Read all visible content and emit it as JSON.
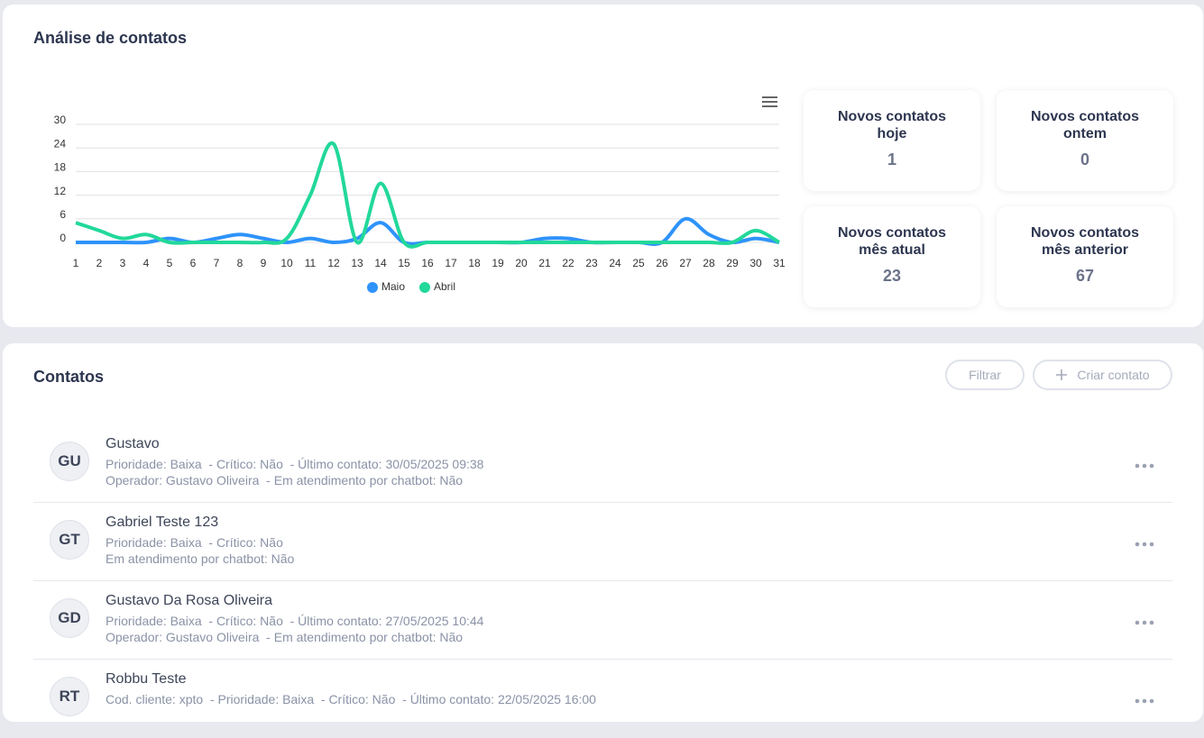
{
  "header": {
    "title": "Análise de contatos"
  },
  "chart_data": {
    "type": "line",
    "categories": [
      "1",
      "2",
      "3",
      "4",
      "5",
      "6",
      "7",
      "8",
      "9",
      "10",
      "11",
      "12",
      "13",
      "14",
      "15",
      "16",
      "17",
      "18",
      "19",
      "20",
      "21",
      "22",
      "23",
      "24",
      "25",
      "26",
      "27",
      "28",
      "29",
      "30",
      "31"
    ],
    "series": [
      {
        "name": "Maio",
        "color": "#2e93fa",
        "values": [
          0,
          0,
          0,
          0,
          1,
          0,
          1,
          2,
          1,
          0,
          1,
          0,
          1,
          5,
          0,
          0,
          0,
          0,
          0,
          0,
          1,
          1,
          0,
          0,
          0,
          0,
          6,
          2,
          0,
          1,
          0
        ]
      },
      {
        "name": "Abril",
        "color": "#22d89a",
        "values": [
          5,
          3,
          1,
          2,
          0,
          0,
          0,
          0,
          0,
          1,
          12,
          25,
          0,
          15,
          0,
          0,
          0,
          0,
          0,
          0,
          0,
          0,
          0,
          0,
          0,
          0,
          0,
          0,
          0,
          3,
          0
        ]
      }
    ],
    "ylim": [
      0,
      30
    ],
    "yticks": [
      0,
      6,
      12,
      18,
      24,
      30
    ],
    "grid": true
  },
  "stats": [
    {
      "title": "Novos contatos hoje",
      "value": 1
    },
    {
      "title": "Novos contatos ontem",
      "value": 0
    },
    {
      "title": "Novos contatos mês atual",
      "value": 23
    },
    {
      "title": "Novos contatos mês anterior",
      "value": 67
    }
  ],
  "contacts": {
    "title": "Contatos",
    "filter_button": "Filtrar",
    "create_button": "Criar contato",
    "rows": [
      {
        "initials": "GU",
        "name": "Gustavo",
        "lines": [
          "Prioridade: Baixa  - Crítico: Não  - Último contato: 30/05/2025 09:38",
          "Operador: Gustavo Oliveira  - Em atendimento por chatbot: Não"
        ]
      },
      {
        "initials": "GT",
        "name": "Gabriel Teste 123",
        "lines": [
          "Prioridade: Baixa  - Crítico: Não",
          "Em atendimento por chatbot: Não"
        ]
      },
      {
        "initials": "GD",
        "name": "Gustavo Da Rosa Oliveira",
        "lines": [
          "Prioridade: Baixa  - Crítico: Não  - Último contato: 27/05/2025 10:44",
          "Operador: Gustavo Oliveira  - Em atendimento por chatbot: Não"
        ]
      },
      {
        "initials": "RT",
        "name": "Robbu Teste",
        "lines": [
          "Cod. cliente: xpto  - Prioridade: Baixa  - Crítico: Não  - Último contato: 22/05/2025 16:00"
        ]
      }
    ]
  }
}
